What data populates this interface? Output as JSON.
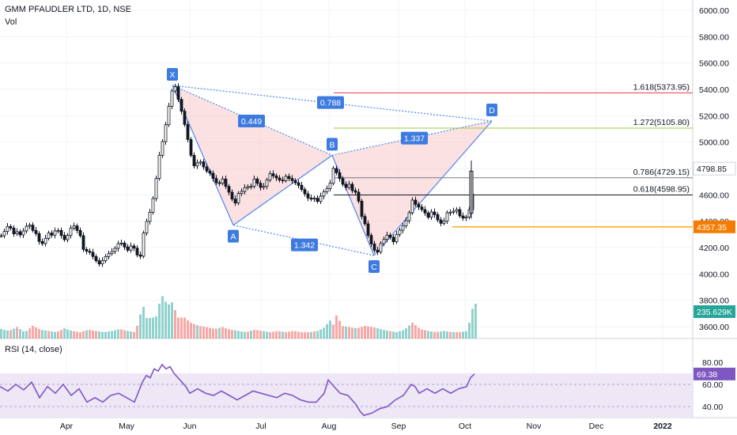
{
  "colors": {
    "up": "#26a69a",
    "down": "#ef5350",
    "pattern_line": "#5b8def",
    "pattern_fill": "#f8c9c9",
    "point_tag": "#3d7be0",
    "rsi_line": "#7e57c2",
    "rsi_band": "#ede7f6",
    "last_price_tag": "#f57c00",
    "volume_tag": "#26a69a",
    "rsi_tag": "#7e57c2",
    "fib_1618": "#f23645",
    "fib_1272": "#9ccc3f",
    "fib_0786": "#787b86",
    "fib_0618": "#131722",
    "support": "#f7a600"
  },
  "header": {
    "title": "GMM PFAUDLER LTD, 1D, NSE",
    "volume_label": "Vol"
  },
  "rsi_panel": {
    "label": "RSI (14, close)",
    "value_tag": "69.38",
    "ticks": [
      "80.00",
      "60.00",
      "40.00"
    ],
    "band": [
      30,
      70
    ]
  },
  "chart_data": {
    "type": "candlestick",
    "title": "GMM PFAUDLER LTD, 1D, NSE",
    "price_axis": {
      "ticks": [
        3600,
        3800,
        4000,
        4200,
        4400,
        4600,
        4800,
        5000,
        5200,
        5400,
        5600,
        5800,
        6000
      ],
      "tick_labels": [
        "3600.00",
        "3800.00",
        "4000.00",
        "4200.00",
        "4400.00",
        "4600.00",
        "4800.00",
        "5000.00",
        "5200.00",
        "5400.00",
        "5600.00",
        "5800.00",
        "6000.00"
      ],
      "range": [
        3500,
        6060
      ]
    },
    "time_axis": {
      "labels": [
        "Apr",
        "May",
        "Jun",
        "Jul",
        "Aug",
        "Sep",
        "Oct",
        "Nov",
        "Dec",
        "2022"
      ]
    },
    "price_path": [
      [
        0,
        4290
      ],
      [
        5,
        4330
      ],
      [
        10,
        4380
      ],
      [
        15,
        4300
      ],
      [
        20,
        4320
      ],
      [
        25,
        4290
      ],
      [
        30,
        4350
      ],
      [
        35,
        4380
      ],
      [
        40,
        4330
      ],
      [
        45,
        4300
      ],
      [
        50,
        4210
      ],
      [
        55,
        4260
      ],
      [
        60,
        4310
      ],
      [
        65,
        4290
      ],
      [
        70,
        4350
      ],
      [
        75,
        4300
      ],
      [
        80,
        4260
      ],
      [
        85,
        4300
      ],
      [
        90,
        4380
      ],
      [
        95,
        4340
      ],
      [
        100,
        4290
      ],
      [
        105,
        4160
      ],
      [
        110,
        4180
      ],
      [
        115,
        4140
      ],
      [
        120,
        4100
      ],
      [
        125,
        4070
      ],
      [
        130,
        4120
      ],
      [
        135,
        4150
      ],
      [
        140,
        4170
      ],
      [
        145,
        4200
      ],
      [
        150,
        4250
      ],
      [
        155,
        4210
      ],
      [
        160,
        4180
      ],
      [
        165,
        4220
      ],
      [
        170,
        4180
      ],
      [
        175,
        4090
      ],
      [
        180,
        4310
      ],
      [
        185,
        4420
      ],
      [
        190,
        4500
      ],
      [
        195,
        4680
      ],
      [
        200,
        4900
      ],
      [
        205,
        5030
      ],
      [
        210,
        5200
      ],
      [
        215,
        5380
      ],
      [
        220,
        5420
      ],
      [
        225,
        5300
      ],
      [
        230,
        5190
      ],
      [
        235,
        5050
      ],
      [
        240,
        4900
      ],
      [
        245,
        4800
      ],
      [
        250,
        4870
      ],
      [
        255,
        4820
      ],
      [
        260,
        4780
      ],
      [
        265,
        4760
      ],
      [
        270,
        4700
      ],
      [
        275,
        4680
      ],
      [
        280,
        4720
      ],
      [
        285,
        4650
      ],
      [
        290,
        4600
      ],
      [
        295,
        4520
      ],
      [
        300,
        4610
      ],
      [
        305,
        4630
      ],
      [
        310,
        4670
      ],
      [
        315,
        4650
      ],
      [
        320,
        4720
      ],
      [
        325,
        4680
      ],
      [
        330,
        4640
      ],
      [
        335,
        4700
      ],
      [
        340,
        4760
      ],
      [
        345,
        4740
      ],
      [
        350,
        4720
      ],
      [
        355,
        4700
      ],
      [
        360,
        4740
      ],
      [
        365,
        4720
      ],
      [
        370,
        4700
      ],
      [
        375,
        4680
      ],
      [
        380,
        4640
      ],
      [
        385,
        4600
      ],
      [
        390,
        4560
      ],
      [
        395,
        4580
      ],
      [
        400,
        4550
      ],
      [
        405,
        4600
      ],
      [
        410,
        4640
      ],
      [
        415,
        4660
      ],
      [
        420,
        4800
      ],
      [
        425,
        4760
      ],
      [
        430,
        4700
      ],
      [
        435,
        4650
      ],
      [
        440,
        4680
      ],
      [
        445,
        4620
      ],
      [
        450,
        4620
      ],
      [
        455,
        4450
      ],
      [
        460,
        4380
      ],
      [
        465,
        4270
      ],
      [
        470,
        4200
      ],
      [
        475,
        4150
      ],
      [
        480,
        4230
      ],
      [
        485,
        4270
      ],
      [
        490,
        4310
      ],
      [
        495,
        4230
      ],
      [
        500,
        4300
      ],
      [
        505,
        4340
      ],
      [
        510,
        4380
      ],
      [
        515,
        4440
      ],
      [
        520,
        4560
      ],
      [
        525,
        4520
      ],
      [
        530,
        4500
      ],
      [
        535,
        4470
      ],
      [
        540,
        4430
      ],
      [
        545,
        4480
      ],
      [
        550,
        4430
      ],
      [
        555,
        4380
      ],
      [
        560,
        4400
      ],
      [
        565,
        4480
      ],
      [
        570,
        4460
      ],
      [
        575,
        4500
      ],
      [
        580,
        4440
      ],
      [
        585,
        4420
      ],
      [
        590,
        4440
      ],
      [
        595,
        4560
      ],
      [
        600,
        4780
      ]
    ],
    "volume_axis_tag": "235.629K",
    "volume_path": [
      [
        0,
        0.15
      ],
      [
        10,
        0.12
      ],
      [
        20,
        0.18
      ],
      [
        30,
        0.1
      ],
      [
        40,
        0.2
      ],
      [
        50,
        0.14
      ],
      [
        60,
        0.12
      ],
      [
        70,
        0.1
      ],
      [
        80,
        0.16
      ],
      [
        90,
        0.12
      ],
      [
        100,
        0.1
      ],
      [
        110,
        0.14
      ],
      [
        120,
        0.12
      ],
      [
        130,
        0.1
      ],
      [
        140,
        0.12
      ],
      [
        150,
        0.15
      ],
      [
        160,
        0.12
      ],
      [
        170,
        0.1
      ],
      [
        175,
        0.35
      ],
      [
        180,
        0.5
      ],
      [
        185,
        0.28
      ],
      [
        190,
        0.35
      ],
      [
        195,
        0.3
      ],
      [
        200,
        0.55
      ],
      [
        205,
        0.7
      ],
      [
        210,
        0.5
      ],
      [
        215,
        0.6
      ],
      [
        220,
        0.45
      ],
      [
        225,
        0.3
      ],
      [
        230,
        0.35
      ],
      [
        240,
        0.25
      ],
      [
        250,
        0.2
      ],
      [
        260,
        0.18
      ],
      [
        270,
        0.15
      ],
      [
        280,
        0.18
      ],
      [
        290,
        0.14
      ],
      [
        300,
        0.12
      ],
      [
        310,
        0.1
      ],
      [
        320,
        0.14
      ],
      [
        330,
        0.12
      ],
      [
        340,
        0.1
      ],
      [
        350,
        0.12
      ],
      [
        360,
        0.1
      ],
      [
        370,
        0.12
      ],
      [
        380,
        0.1
      ],
      [
        390,
        0.1
      ],
      [
        400,
        0.12
      ],
      [
        410,
        0.18
      ],
      [
        415,
        0.3
      ],
      [
        420,
        0.22
      ],
      [
        425,
        0.4
      ],
      [
        430,
        0.2
      ],
      [
        440,
        0.18
      ],
      [
        450,
        0.16
      ],
      [
        460,
        0.2
      ],
      [
        470,
        0.18
      ],
      [
        480,
        0.15
      ],
      [
        490,
        0.12
      ],
      [
        500,
        0.1
      ],
      [
        510,
        0.14
      ],
      [
        520,
        0.25
      ],
      [
        530,
        0.15
      ],
      [
        540,
        0.12
      ],
      [
        550,
        0.1
      ],
      [
        560,
        0.12
      ],
      [
        570,
        0.1
      ],
      [
        580,
        0.1
      ],
      [
        590,
        0.12
      ],
      [
        595,
        0.45
      ],
      [
        600,
        0.55
      ]
    ],
    "rsi_path": [
      [
        0,
        58
      ],
      [
        10,
        54
      ],
      [
        20,
        60
      ],
      [
        30,
        55
      ],
      [
        40,
        62
      ],
      [
        50,
        48
      ],
      [
        60,
        58
      ],
      [
        70,
        52
      ],
      [
        80,
        60
      ],
      [
        90,
        50
      ],
      [
        100,
        56
      ],
      [
        110,
        44
      ],
      [
        120,
        48
      ],
      [
        130,
        44
      ],
      [
        140,
        50
      ],
      [
        150,
        52
      ],
      [
        160,
        48
      ],
      [
        170,
        44
      ],
      [
        180,
        62
      ],
      [
        185,
        68
      ],
      [
        190,
        66
      ],
      [
        195,
        74
      ],
      [
        200,
        72
      ],
      [
        205,
        78
      ],
      [
        210,
        74
      ],
      [
        215,
        76
      ],
      [
        220,
        70
      ],
      [
        225,
        66
      ],
      [
        230,
        62
      ],
      [
        235,
        58
      ],
      [
        240,
        52
      ],
      [
        250,
        56
      ],
      [
        260,
        52
      ],
      [
        270,
        50
      ],
      [
        280,
        54
      ],
      [
        290,
        50
      ],
      [
        300,
        46
      ],
      [
        310,
        50
      ],
      [
        320,
        54
      ],
      [
        330,
        52
      ],
      [
        340,
        50
      ],
      [
        350,
        48
      ],
      [
        360,
        52
      ],
      [
        370,
        50
      ],
      [
        380,
        46
      ],
      [
        390,
        44
      ],
      [
        400,
        44
      ],
      [
        410,
        52
      ],
      [
        415,
        64
      ],
      [
        420,
        60
      ],
      [
        425,
        56
      ],
      [
        430,
        52
      ],
      [
        440,
        50
      ],
      [
        450,
        42
      ],
      [
        455,
        36
      ],
      [
        460,
        32
      ],
      [
        470,
        34
      ],
      [
        480,
        38
      ],
      [
        490,
        40
      ],
      [
        500,
        46
      ],
      [
        510,
        50
      ],
      [
        520,
        60
      ],
      [
        525,
        58
      ],
      [
        530,
        52
      ],
      [
        540,
        56
      ],
      [
        550,
        52
      ],
      [
        560,
        56
      ],
      [
        570,
        52
      ],
      [
        580,
        56
      ],
      [
        590,
        58
      ],
      [
        595,
        66
      ],
      [
        600,
        69.38
      ]
    ],
    "harmonic_pattern": {
      "points": [
        {
          "label": "X",
          "day": 218,
          "price": 5430
        },
        {
          "label": "A",
          "day": 295,
          "price": 4370
        },
        {
          "label": "B",
          "day": 420,
          "price": 4900
        },
        {
          "label": "C",
          "day": 473,
          "price": 4140
        },
        {
          "label": "D",
          "day": 622,
          "price": 5160
        }
      ],
      "ratios": [
        {
          "label": "0.449",
          "day": 318,
          "price": 5160
        },
        {
          "label": "0.788",
          "day": 418,
          "price": 5300
        },
        {
          "label": "1.337",
          "day": 524,
          "price": 5030
        },
        {
          "label": "1.342",
          "day": 385,
          "price": 4220
        }
      ]
    },
    "fib_levels": [
      {
        "label": "1.618(5373.95)",
        "price": 5373.95,
        "color_key": "fib_1618"
      },
      {
        "label": "1.272(5105.80)",
        "price": 5105.8,
        "color_key": "fib_1272"
      },
      {
        "label": "0.786(4729.15)",
        "price": 4729.15,
        "color_key": "fib_0786"
      },
      {
        "label": "0.618(4598.95)",
        "price": 4598.95,
        "color_key": "fib_0618"
      }
    ],
    "support_level": {
      "price": 4357.35,
      "label": "4357.35"
    },
    "current_high_label": "4798.85"
  }
}
